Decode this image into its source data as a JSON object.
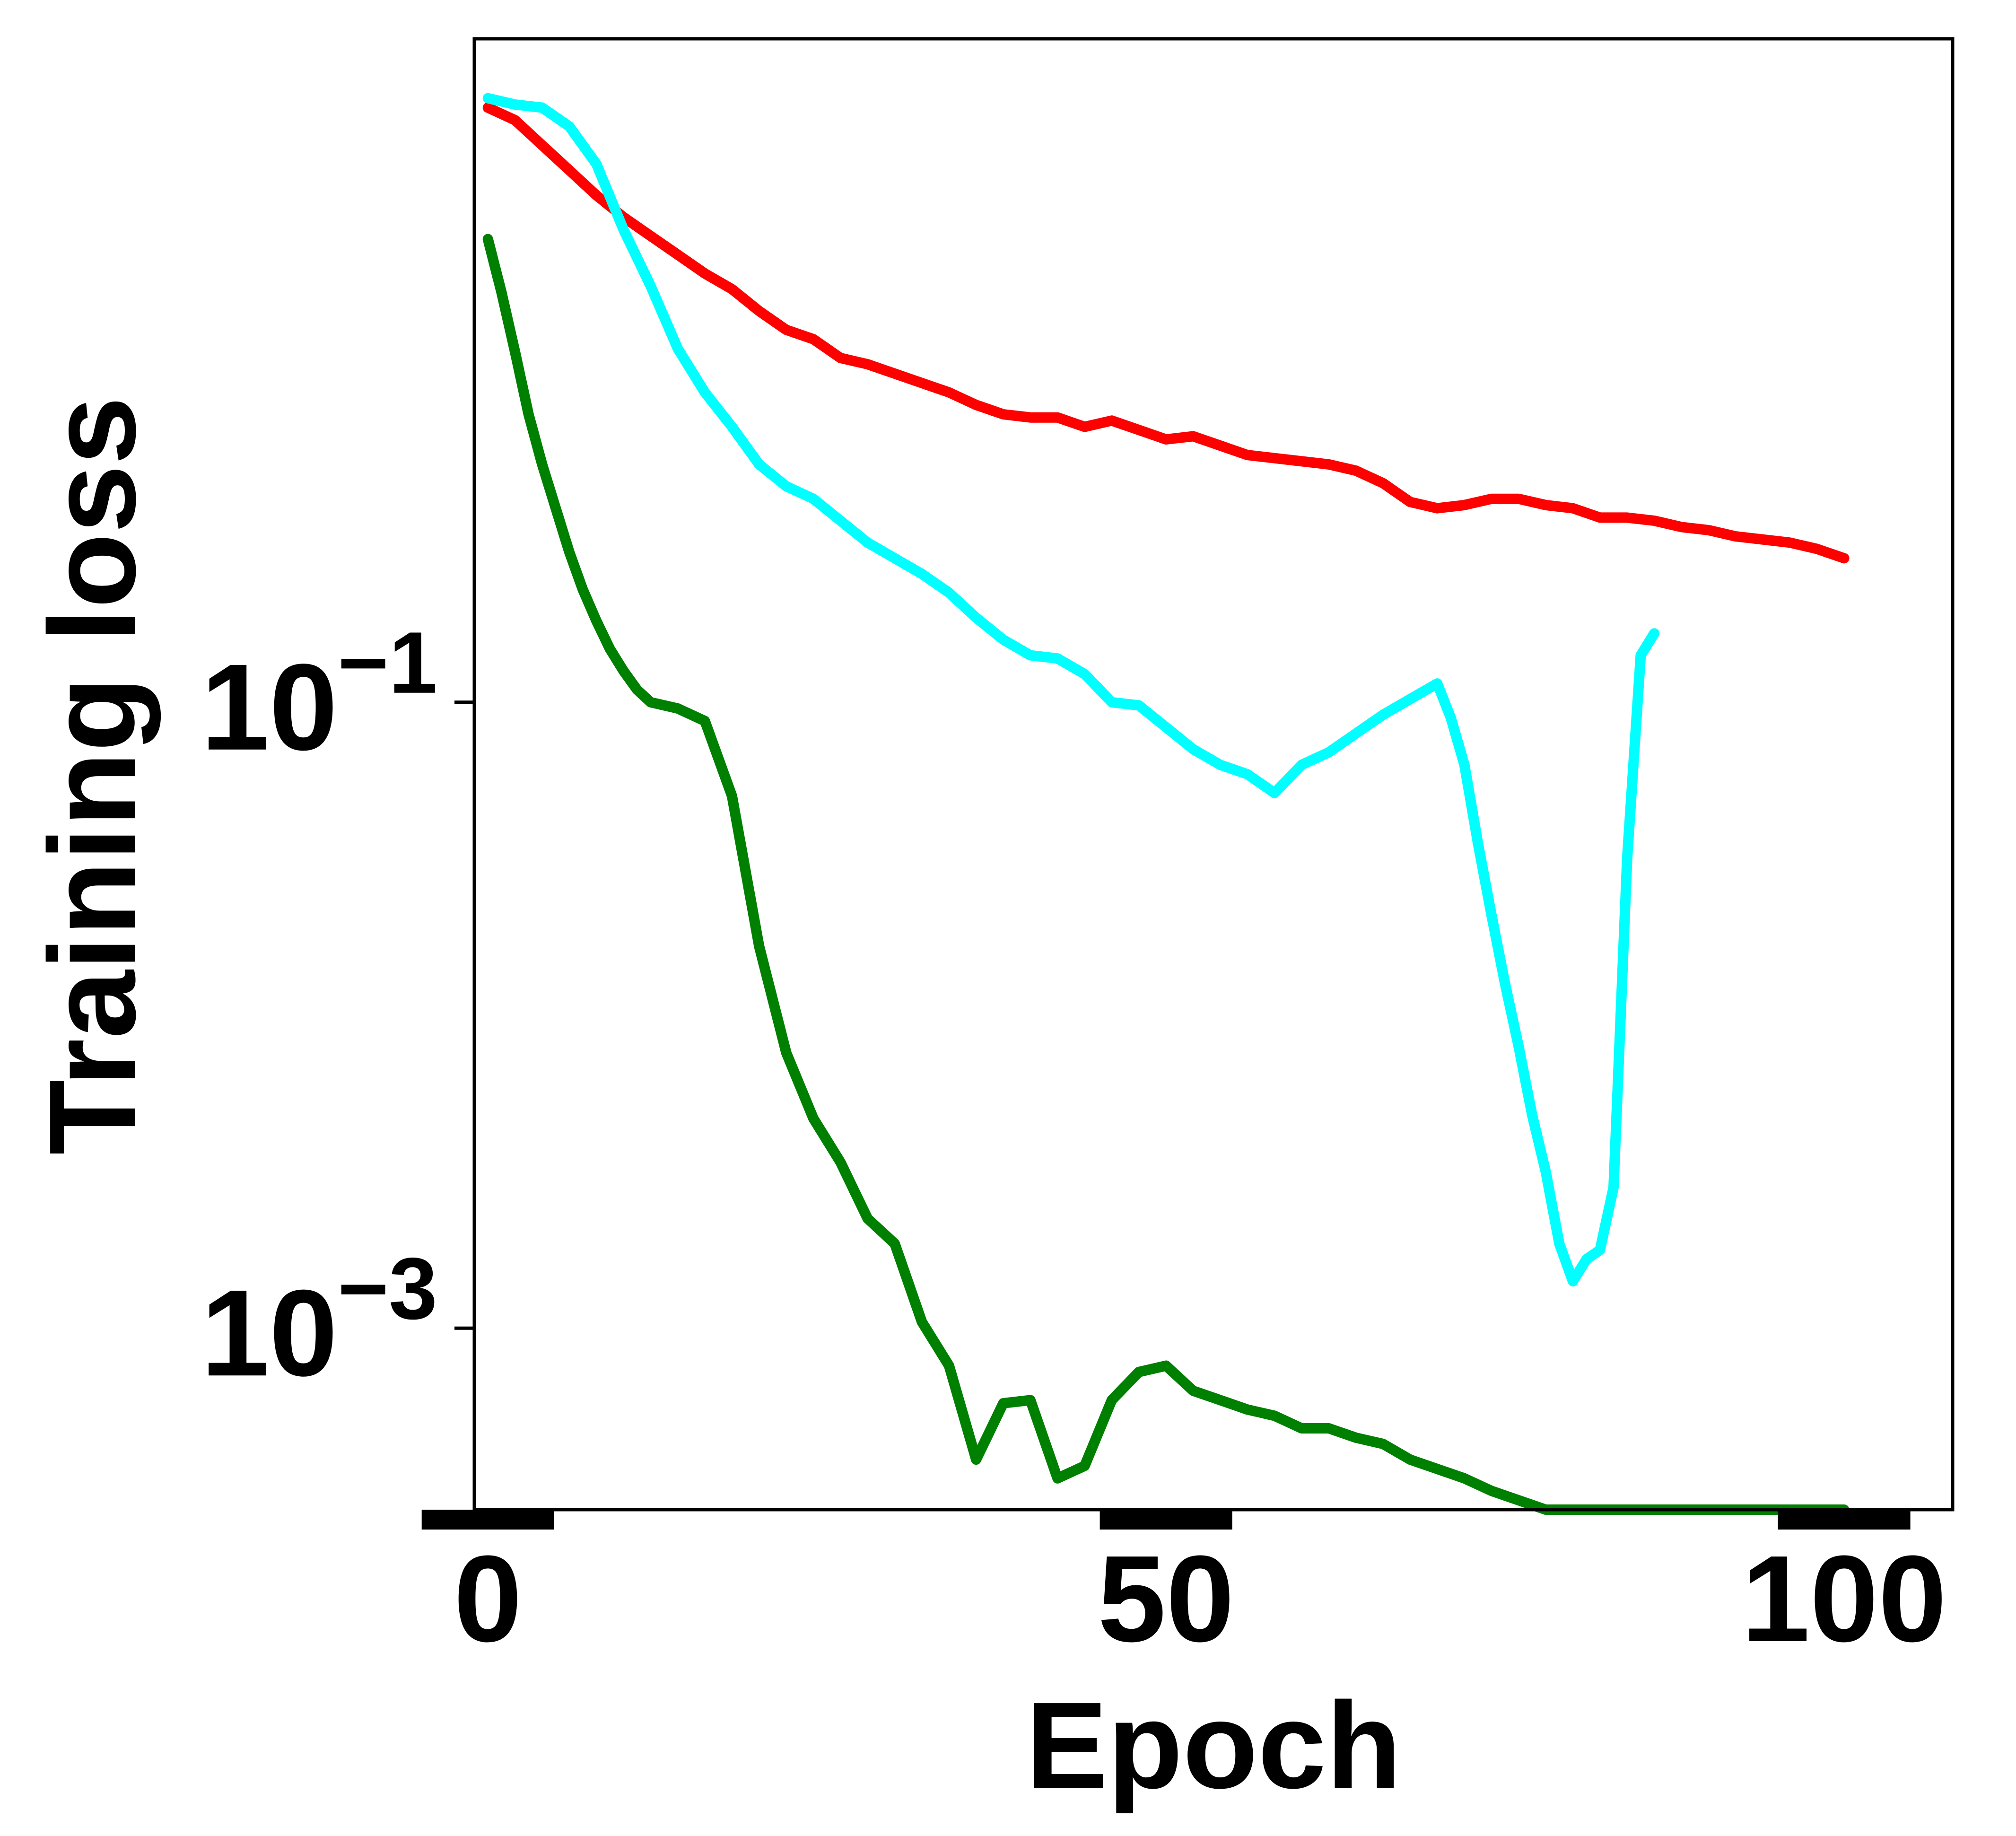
{
  "chart_data": {
    "type": "line",
    "title": "",
    "xlabel": "Epoch",
    "ylabel": "Training loss",
    "xlim": [
      -1,
      108
    ],
    "ylim_log10": [
      -3.58,
      1.12
    ],
    "yscale": "log",
    "grid": false,
    "xticks": [
      {
        "value": 0,
        "label": "0"
      },
      {
        "value": 50,
        "label": "50"
      },
      {
        "value": 100,
        "label": "100"
      }
    ],
    "yticks": [
      {
        "exp": -1,
        "base": "10",
        "sup": "−1"
      },
      {
        "exp": -3,
        "base": "10",
        "sup": "−3"
      }
    ],
    "series": [
      {
        "color": "#ff0000",
        "x": [
          0,
          2,
          4,
          6,
          8,
          10,
          12,
          14,
          16,
          18,
          20,
          22,
          24,
          26,
          28,
          30,
          32,
          34,
          36,
          38,
          40,
          42,
          44,
          46,
          48,
          50,
          52,
          54,
          56,
          58,
          60,
          62,
          64,
          66,
          68,
          70,
          72,
          74,
          76,
          78,
          80,
          82,
          84,
          86,
          88,
          90,
          92,
          94,
          96,
          98,
          100
        ],
        "log10y": [
          0.9,
          0.86,
          0.78,
          0.7,
          0.62,
          0.55,
          0.49,
          0.43,
          0.37,
          0.32,
          0.25,
          0.19,
          0.16,
          0.1,
          0.08,
          0.05,
          0.02,
          -0.01,
          -0.05,
          -0.08,
          -0.09,
          -0.09,
          -0.12,
          -0.1,
          -0.13,
          -0.16,
          -0.15,
          -0.18,
          -0.21,
          -0.22,
          -0.23,
          -0.24,
          -0.26,
          -0.3,
          -0.36,
          -0.38,
          -0.37,
          -0.35,
          -0.35,
          -0.37,
          -0.38,
          -0.41,
          -0.41,
          -0.42,
          -0.44,
          -0.45,
          -0.47,
          -0.48,
          -0.49,
          -0.51,
          -0.54
        ]
      },
      {
        "color": "#00ffff",
        "x": [
          0,
          2,
          4,
          6,
          8,
          10,
          12,
          14,
          16,
          18,
          20,
          22,
          24,
          26,
          28,
          30,
          32,
          34,
          36,
          38,
          40,
          42,
          44,
          46,
          48,
          50,
          52,
          54,
          56,
          58,
          60,
          62,
          64,
          66,
          68,
          70,
          71,
          72,
          73,
          74,
          75,
          76,
          77,
          78,
          79,
          80,
          81,
          82,
          83,
          84,
          85,
          86
        ],
        "log10y": [
          0.93,
          0.91,
          0.9,
          0.84,
          0.72,
          0.51,
          0.33,
          0.13,
          -0.01,
          -0.12,
          -0.24,
          -0.31,
          -0.35,
          -0.42,
          -0.49,
          -0.54,
          -0.59,
          -0.65,
          -0.73,
          -0.8,
          -0.85,
          -0.86,
          -0.91,
          -1.0,
          -1.01,
          -1.08,
          -1.15,
          -1.2,
          -1.23,
          -1.29,
          -1.2,
          -1.16,
          -1.1,
          -1.04,
          -0.99,
          -0.94,
          -1.05,
          -1.2,
          -1.45,
          -1.68,
          -1.9,
          -2.1,
          -2.32,
          -2.5,
          -2.73,
          -2.85,
          -2.78,
          -2.75,
          -2.55,
          -1.5,
          -0.85,
          -0.78
        ]
      },
      {
        "color": "#008000",
        "x": [
          0,
          1,
          2,
          3,
          4,
          5,
          6,
          7,
          8,
          9,
          10,
          11,
          12,
          14,
          16,
          18,
          20,
          22,
          24,
          26,
          28,
          30,
          32,
          34,
          36,
          38,
          40,
          42,
          44,
          46,
          48,
          50,
          52,
          54,
          56,
          58,
          60,
          62,
          64,
          66,
          68,
          70,
          72,
          74,
          76,
          78,
          80,
          82,
          84,
          86,
          88,
          90,
          92,
          94,
          96,
          98,
          100
        ],
        "log10y": [
          0.48,
          0.31,
          0.12,
          -0.08,
          -0.24,
          -0.38,
          -0.52,
          -0.64,
          -0.74,
          -0.83,
          -0.9,
          -0.96,
          -1.0,
          -1.02,
          -1.06,
          -1.3,
          -1.78,
          -2.12,
          -2.33,
          -2.47,
          -2.65,
          -2.73,
          -2.98,
          -3.12,
          -3.42,
          -3.24,
          -3.23,
          -3.48,
          -3.44,
          -3.23,
          -3.14,
          -3.12,
          -3.2,
          -3.23,
          -3.26,
          -3.28,
          -3.32,
          -3.32,
          -3.35,
          -3.37,
          -3.42,
          -3.45,
          -3.48,
          -3.52,
          -3.55,
          -3.6,
          -3.63,
          -3.7,
          -3.8,
          -3.88,
          -3.97,
          -4.05,
          -4.1,
          -4.16,
          -4.2,
          -4.25,
          -4.25
        ]
      }
    ]
  }
}
